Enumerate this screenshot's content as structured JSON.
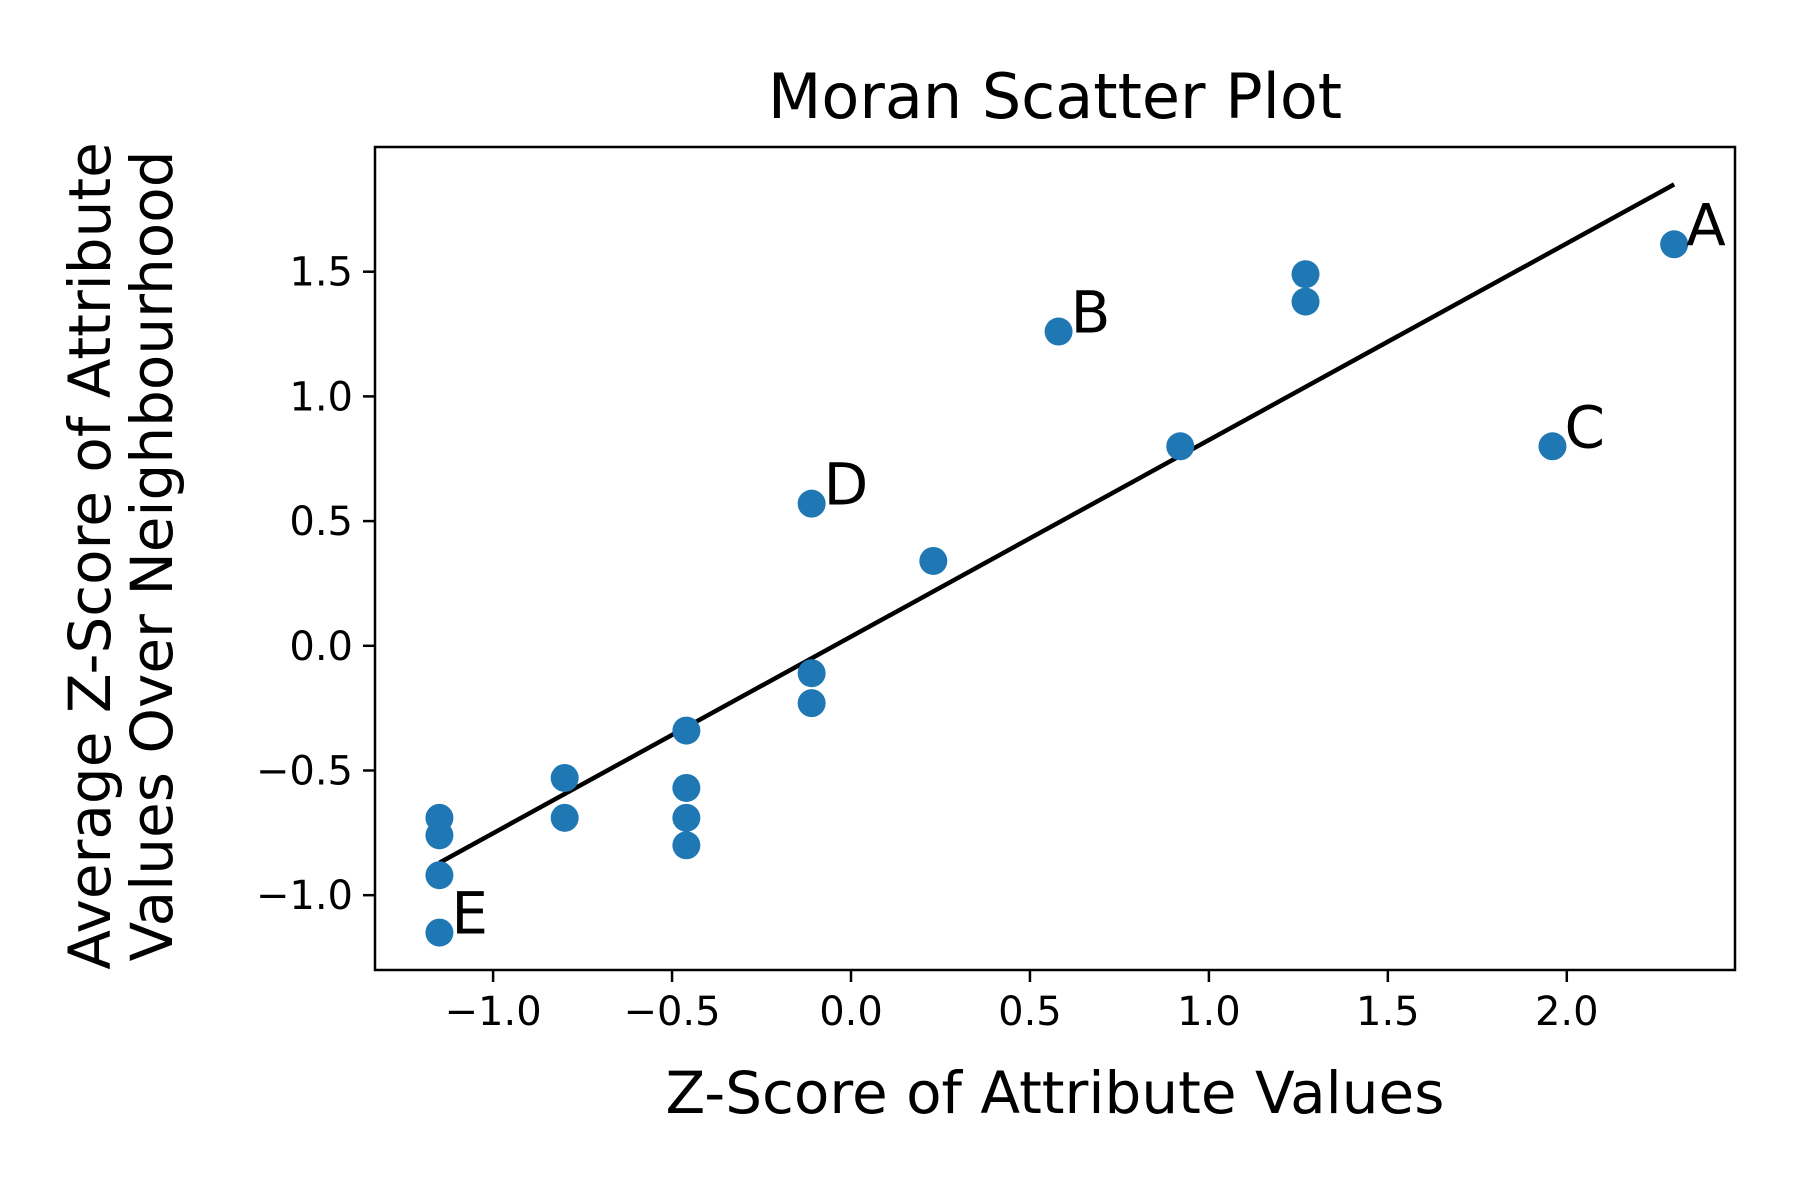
{
  "chart_data": {
    "type": "scatter",
    "title": "Moran Scatter Plot",
    "xlabel": "Z-Score of Attribute Values",
    "ylabel": [
      "Average Z-Score of Attribute",
      "Values Over Neighbourhood"
    ],
    "xlim": [
      -1.33,
      2.47
    ],
    "ylim": [
      -1.3,
      2.0
    ],
    "x_ticks": [
      -1.0,
      -0.5,
      0.0,
      0.5,
      1.0,
      1.5,
      2.0
    ],
    "x_tick_labels": [
      "−1.0",
      "−0.5",
      "0.0",
      "0.5",
      "1.0",
      "1.5",
      "2.0"
    ],
    "y_ticks": [
      -1.0,
      -0.5,
      0.0,
      0.5,
      1.0,
      1.5
    ],
    "y_tick_labels": [
      "−1.0",
      "−0.5",
      "0.0",
      "0.5",
      "1.0",
      "1.5"
    ],
    "grid": false,
    "point_color": "#1f77b4",
    "line_color": "#000000",
    "points": [
      {
        "x": 2.3,
        "y": 1.61,
        "label": "A"
      },
      {
        "x": 1.27,
        "y": 1.49
      },
      {
        "x": 1.27,
        "y": 1.38
      },
      {
        "x": 0.58,
        "y": 1.26,
        "label": "B"
      },
      {
        "x": 1.96,
        "y": 0.8,
        "label": "C"
      },
      {
        "x": 0.92,
        "y": 0.8
      },
      {
        "x": -0.11,
        "y": 0.57,
        "label": "D"
      },
      {
        "x": 0.23,
        "y": 0.34
      },
      {
        "x": -0.11,
        "y": -0.11
      },
      {
        "x": -0.11,
        "y": -0.23
      },
      {
        "x": -0.46,
        "y": -0.34
      },
      {
        "x": -0.8,
        "y": -0.53
      },
      {
        "x": -0.8,
        "y": -0.69
      },
      {
        "x": -0.46,
        "y": -0.57
      },
      {
        "x": -0.46,
        "y": -0.69
      },
      {
        "x": -0.46,
        "y": -0.8
      },
      {
        "x": -1.15,
        "y": -0.69
      },
      {
        "x": -1.15,
        "y": -0.76
      },
      {
        "x": -1.15,
        "y": -0.92
      },
      {
        "x": -1.15,
        "y": -1.15,
        "label": "E"
      }
    ],
    "regression_line": {
      "x": [
        -1.15,
        2.3
      ],
      "y": [
        -0.87,
        1.85
      ]
    }
  }
}
